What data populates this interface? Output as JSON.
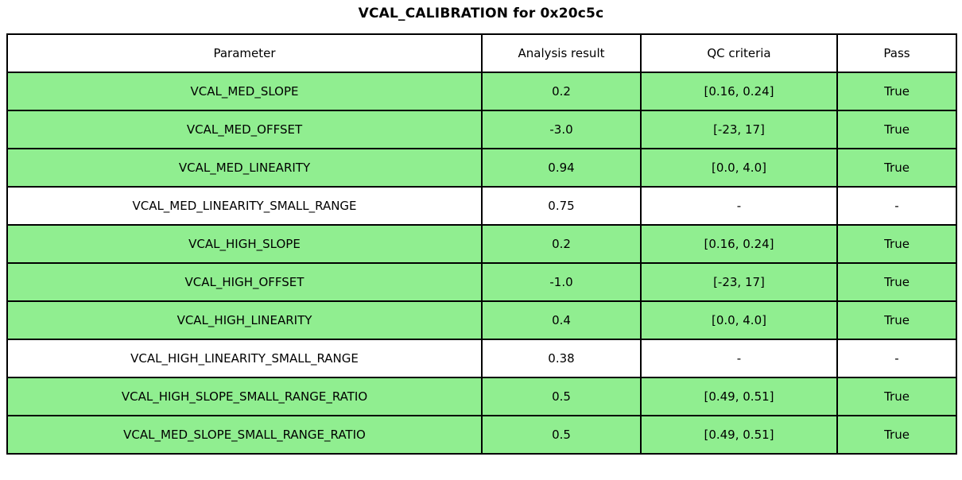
{
  "title": "VCAL_CALIBRATION for 0x20c5c",
  "colors": {
    "pass_row_background": "#90EE90",
    "no_qc_row_background": "#FFFFFF",
    "border": "#000000",
    "text": "#000000"
  },
  "table": {
    "headers": [
      "Parameter",
      "Analysis result",
      "QC criteria",
      "Pass"
    ],
    "rows": [
      {
        "parameter": "VCAL_MED_SLOPE",
        "analysis_result": "0.2",
        "qc_criteria": "[0.16, 0.24]",
        "pass": "True",
        "row_color": "#90EE90"
      },
      {
        "parameter": "VCAL_MED_OFFSET",
        "analysis_result": "-3.0",
        "qc_criteria": "[-23, 17]",
        "pass": "True",
        "row_color": "#90EE90"
      },
      {
        "parameter": "VCAL_MED_LINEARITY",
        "analysis_result": "0.94",
        "qc_criteria": "[0.0, 4.0]",
        "pass": "True",
        "row_color": "#90EE90"
      },
      {
        "parameter": "VCAL_MED_LINEARITY_SMALL_RANGE",
        "analysis_result": "0.75",
        "qc_criteria": "-",
        "pass": "-",
        "row_color": "#FFFFFF"
      },
      {
        "parameter": "VCAL_HIGH_SLOPE",
        "analysis_result": "0.2",
        "qc_criteria": "[0.16, 0.24]",
        "pass": "True",
        "row_color": "#90EE90"
      },
      {
        "parameter": "VCAL_HIGH_OFFSET",
        "analysis_result": "-1.0",
        "qc_criteria": "[-23, 17]",
        "pass": "True",
        "row_color": "#90EE90"
      },
      {
        "parameter": "VCAL_HIGH_LINEARITY",
        "analysis_result": "0.4",
        "qc_criteria": "[0.0, 4.0]",
        "pass": "True",
        "row_color": "#90EE90"
      },
      {
        "parameter": "VCAL_HIGH_LINEARITY_SMALL_RANGE",
        "analysis_result": "0.38",
        "qc_criteria": "-",
        "pass": "-",
        "row_color": "#FFFFFF"
      },
      {
        "parameter": "VCAL_HIGH_SLOPE_SMALL_RANGE_RATIO",
        "analysis_result": "0.5",
        "qc_criteria": "[0.49, 0.51]",
        "pass": "True",
        "row_color": "#90EE90"
      },
      {
        "parameter": "VCAL_MED_SLOPE_SMALL_RANGE_RATIO",
        "analysis_result": "0.5",
        "qc_criteria": "[0.49, 0.51]",
        "pass": "True",
        "row_color": "#90EE90"
      }
    ]
  },
  "chart_data": {
    "type": "table",
    "title": "VCAL_CALIBRATION for 0x20c5c",
    "columns": [
      "Parameter",
      "Analysis result",
      "QC criteria",
      "Pass"
    ],
    "rows": [
      [
        "VCAL_MED_SLOPE",
        "0.2",
        "[0.16, 0.24]",
        "True"
      ],
      [
        "VCAL_MED_OFFSET",
        "-3.0",
        "[-23, 17]",
        "True"
      ],
      [
        "VCAL_MED_LINEARITY",
        "0.94",
        "[0.0, 4.0]",
        "True"
      ],
      [
        "VCAL_MED_LINEARITY_SMALL_RANGE",
        "0.75",
        "-",
        "-"
      ],
      [
        "VCAL_HIGH_SLOPE",
        "0.2",
        "[0.16, 0.24]",
        "True"
      ],
      [
        "VCAL_HIGH_OFFSET",
        "-1.0",
        "[-23, 17]",
        "True"
      ],
      [
        "VCAL_HIGH_LINEARITY",
        "0.4",
        "[0.0, 4.0]",
        "True"
      ],
      [
        "VCAL_HIGH_LINEARITY_SMALL_RANGE",
        "0.38",
        "-",
        "-"
      ],
      [
        "VCAL_HIGH_SLOPE_SMALL_RANGE_RATIO",
        "0.5",
        "[0.49, 0.51]",
        "True"
      ],
      [
        "VCAL_MED_SLOPE_SMALL_RANGE_RATIO",
        "0.5",
        "[0.49, 0.51]",
        "True"
      ]
    ],
    "layout": {
      "highlighted_rows_color": "#90EE90",
      "grid": "on",
      "text_align": "center"
    }
  }
}
